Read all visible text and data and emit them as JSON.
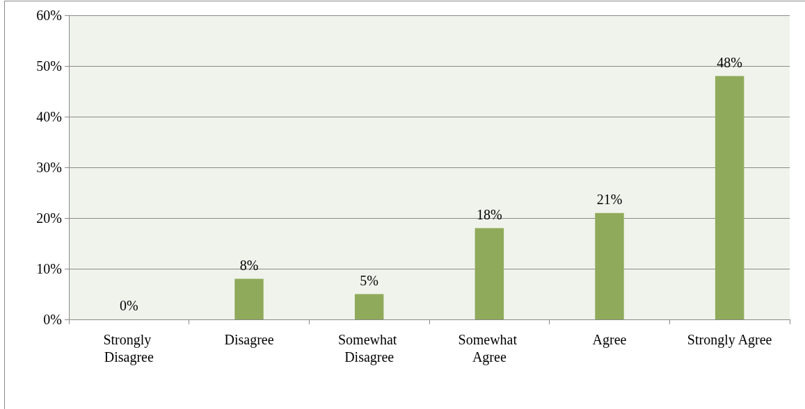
{
  "chart_data": {
    "type": "bar",
    "categories": [
      "Strongly Disagree",
      "Disagree",
      "Somewhat Disagree",
      "Somewhat Agree",
      "Agree",
      "Strongly Agree"
    ],
    "values": [
      0,
      8,
      5,
      18,
      21,
      48
    ],
    "value_labels": [
      "0%",
      "8%",
      "5%",
      "18%",
      "21%",
      "48%"
    ],
    "color": "#8faa5a",
    "ylim": [
      0,
      60
    ],
    "yticks": [
      {
        "value": 0,
        "label": "0%"
      },
      {
        "value": 10,
        "label": "10%"
      },
      {
        "value": 20,
        "label": "20%"
      },
      {
        "value": 30,
        "label": "30%"
      },
      {
        "value": 40,
        "label": "40%"
      },
      {
        "value": 50,
        "label": "50%"
      },
      {
        "value": 60,
        "label": "60%"
      }
    ],
    "grid": "y"
  }
}
